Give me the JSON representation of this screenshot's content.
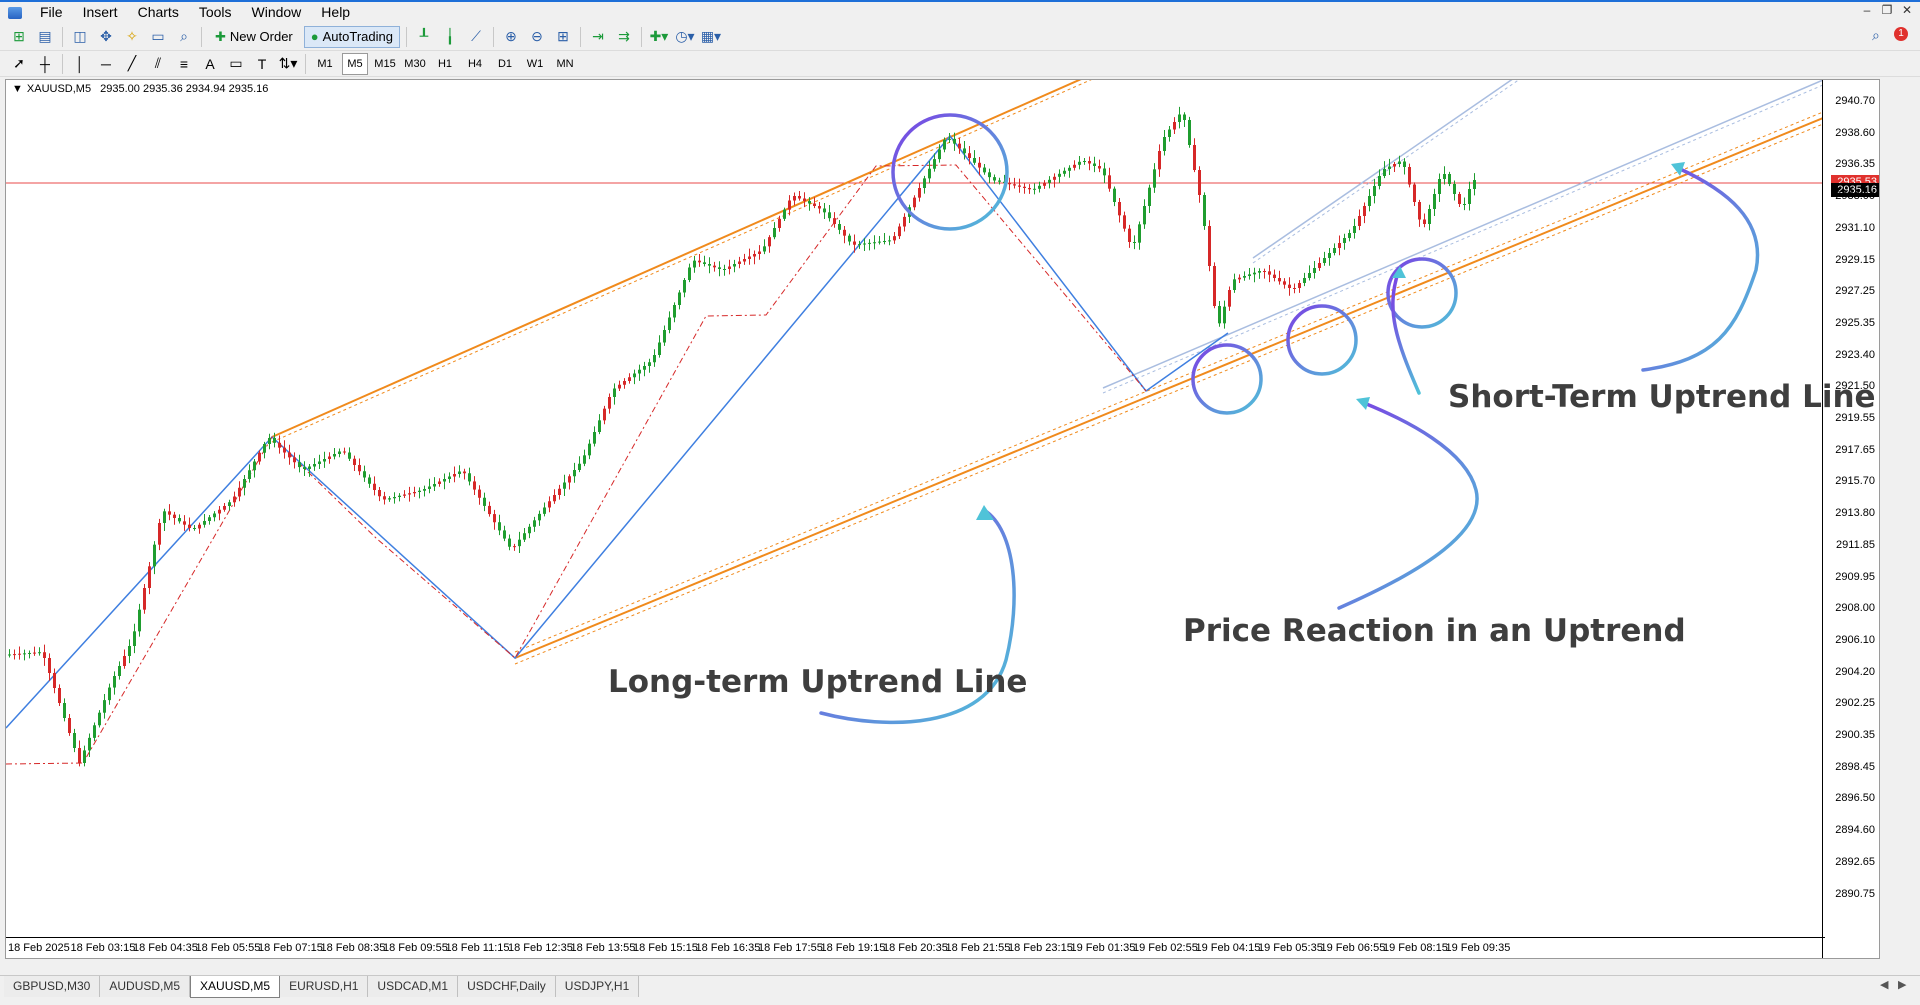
{
  "menu": [
    "File",
    "Insert",
    "Charts",
    "Tools",
    "Window",
    "Help"
  ],
  "toolbar": {
    "new_order": "New Order",
    "autotrading": "AutoTrading",
    "timeframes": [
      "M1",
      "M5",
      "M15",
      "M30",
      "H1",
      "H4",
      "D1",
      "W1",
      "MN"
    ],
    "active_timeframe": "M5",
    "notification_count": "1"
  },
  "chart": {
    "header_symbol": "XAUUSD,M5",
    "header_ohlc": "2935.00 2935.36 2934.94 2935.16",
    "current_price_tag": "2935.16",
    "red_line_tag": "2935.53",
    "price_axis": [
      "2940.70",
      "2938.60",
      "2936.35",
      "2933.00",
      "2931.10",
      "2929.15",
      "2927.25",
      "2925.35",
      "2923.40",
      "2921.50",
      "2919.55",
      "2917.65",
      "2915.70",
      "2913.80",
      "2911.85",
      "2909.95",
      "2908.00",
      "2906.10",
      "2904.20",
      "2902.25",
      "2900.35",
      "2898.45",
      "2896.50",
      "2894.60",
      "2892.65",
      "2890.75"
    ],
    "time_axis": [
      "18 Feb 2025",
      "18 Feb 03:15",
      "18 Feb 04:35",
      "18 Feb 05:55",
      "18 Feb 07:15",
      "18 Feb 08:35",
      "18 Feb 09:55",
      "18 Feb 11:15",
      "18 Feb 12:35",
      "18 Feb 13:55",
      "18 Feb 15:15",
      "18 Feb 16:35",
      "18 Feb 17:55",
      "18 Feb 19:15",
      "18 Feb 20:35",
      "18 Feb 21:55",
      "18 Feb 23:15",
      "19 Feb 01:35",
      "19 Feb 02:55",
      "19 Feb 04:15",
      "19 Feb 05:35",
      "19 Feb 06:55",
      "19 Feb 08:15",
      "19 Feb 09:35"
    ],
    "annotations": {
      "long_term": "Long-term Uptrend Line",
      "reaction": "Price Reaction in an Uptrend",
      "short_term": "Short-Term Uptrend Line"
    },
    "colors": {
      "bull": "#1f9d2f",
      "bear": "#d62828",
      "zigzag": "#3f7fe0",
      "orange_trend": "#f08a1c",
      "short_trend": "#a9bde0",
      "horizontal_line": "#e84a4a",
      "circle_purple": "#7b3fe4",
      "circle_cyan": "#4fc3d8"
    }
  },
  "tabs": [
    "GBPUSD,M30",
    "AUDUSD,M5",
    "XAUUSD,M5",
    "EURUSD,H1",
    "USDCAD,M1",
    "USDCHF,Daily",
    "USDJPY,H1"
  ],
  "active_tab": "XAUUSD,M5"
}
